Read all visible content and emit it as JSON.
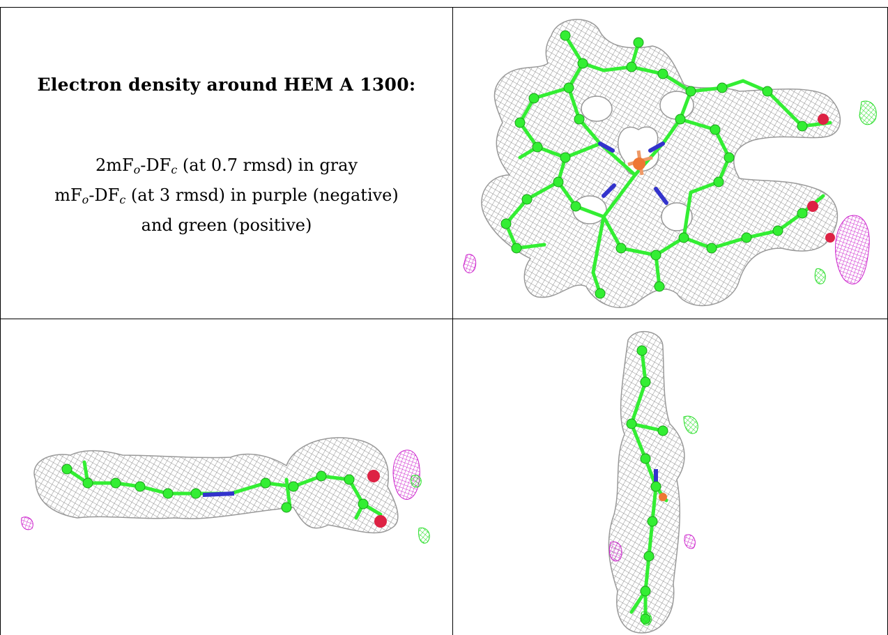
{
  "caption": {
    "title": "Electron density around HEM A 1300:",
    "line1": {
      "pre": "2mF",
      "sub1": "o",
      "mid": "-DF",
      "sub2": "c",
      "post": " (at 0.7 rmsd) in gray"
    },
    "line2": {
      "pre": "mF",
      "sub1": "o",
      "mid": "-DF",
      "sub2": "c",
      "post": " (at 3 rmsd) in purple (negative)"
    },
    "line3": "and green (positive)"
  },
  "colors": {
    "density_gray": "#8c8c8c",
    "carbon_green": "#33ee33",
    "nitrogen_blue": "#3333cc",
    "oxygen_red": "#dd2244",
    "iron_orange": "#ee7733",
    "negative_purple": "#cc22cc",
    "positive_green": "#22dd22"
  },
  "panels": [
    {
      "view": "face-on"
    },
    {
      "view": "edge-on-horizontal"
    },
    {
      "view": "edge-on-vertical"
    }
  ]
}
